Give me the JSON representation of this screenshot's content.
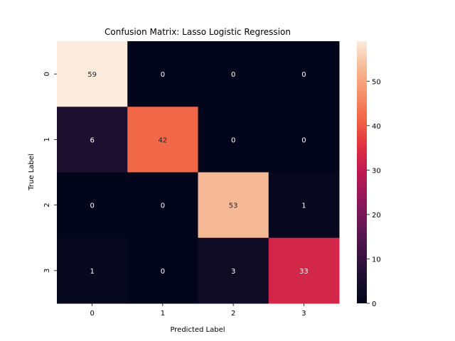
{
  "chart_data": {
    "type": "heatmap",
    "title": "Confusion Matrix: Lasso Logistic Regression",
    "xlabel": "Predicted Label",
    "ylabel": "True Label",
    "x_categories": [
      "0",
      "1",
      "2",
      "3"
    ],
    "y_categories": [
      "0",
      "1",
      "2",
      "3"
    ],
    "values": [
      [
        59,
        0,
        0,
        0
      ],
      [
        6,
        42,
        0,
        0
      ],
      [
        0,
        0,
        53,
        1
      ],
      [
        1,
        0,
        3,
        33
      ]
    ],
    "colorbar": {
      "min": 0,
      "max": 59,
      "ticks": [
        0,
        10,
        20,
        30,
        40,
        50
      ],
      "colormap": "rocket"
    },
    "annotations_shown": true
  }
}
